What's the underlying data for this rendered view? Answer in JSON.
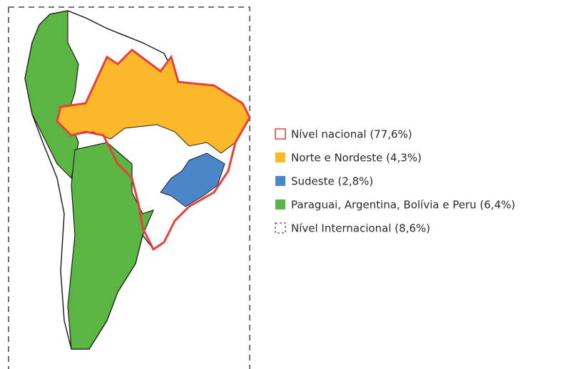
{
  "legend": {
    "items": [
      {
        "label": "Nível nacional (77,6%)"
      },
      {
        "label": "Norte e Nordeste (4,3%)"
      },
      {
        "label": "Sudeste (2,8%)"
      },
      {
        "label": "Paraguai, Argentina, Bolívia e Peru (6,4%)"
      },
      {
        "label": "Nível Internacional (8,6%)"
      }
    ]
  }
}
